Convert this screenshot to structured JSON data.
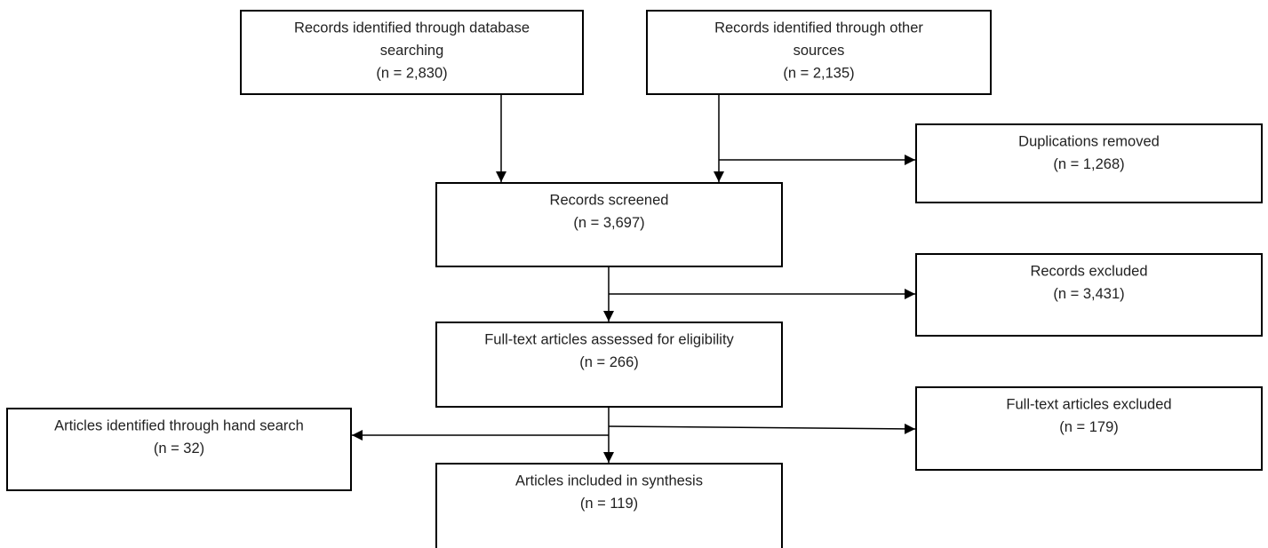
{
  "nodes": [
    {
      "lines": [
        "Records identified through database",
        "searching",
        "(n = 2,830)"
      ]
    },
    {
      "lines": [
        "Records identified through other",
        "sources",
        "(n = 2,135)"
      ]
    },
    {
      "lines": [
        "Duplications removed",
        "(n = 1,268)"
      ]
    },
    {
      "lines": [
        "Records screened",
        "(n = 3,697)"
      ]
    },
    {
      "lines": [
        "Records excluded",
        "(n = 3,431)"
      ]
    },
    {
      "lines": [
        "Full-text articles assessed for eligibility",
        "(n = 266)"
      ]
    },
    {
      "lines": [
        "Articles identified through hand search",
        "(n = 32)"
      ]
    },
    {
      "lines": [
        "Full-text articles excluded",
        "(n = 179)"
      ]
    },
    {
      "lines": [
        "Articles included in synthesis",
        "(n = 119)"
      ]
    }
  ]
}
